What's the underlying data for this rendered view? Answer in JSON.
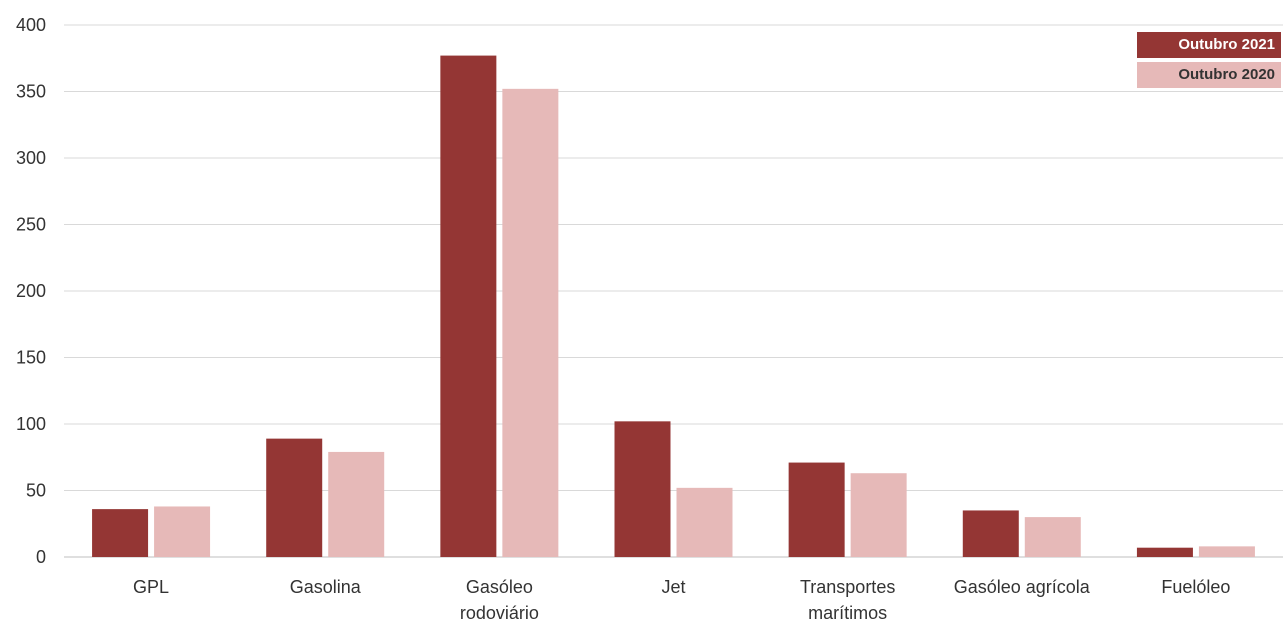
{
  "colors": {
    "series_2021": "#943634",
    "series_2020": "#E6B9B8",
    "grid": "#D9D9D9",
    "axis": "#BFBFBF"
  },
  "chart_data": {
    "type": "bar",
    "categories": [
      "GPL",
      "Gasolina",
      "Gasóleo rodoviário",
      "Jet",
      "Transportes marítimos",
      "Gasóleo agrícola",
      "Fuelóleo"
    ],
    "category_lines": [
      [
        "GPL"
      ],
      [
        "Gasolina"
      ],
      [
        "Gasóleo",
        "rodoviário"
      ],
      [
        "Jet"
      ],
      [
        "Transportes",
        "marítimos"
      ],
      [
        "Gasóleo agrícola"
      ],
      [
        "Fuelóleo"
      ]
    ],
    "series": [
      {
        "name": "Outubro 2021",
        "values": [
          36,
          89,
          377,
          102,
          71,
          35,
          7
        ]
      },
      {
        "name": "Outubro 2020",
        "values": [
          38,
          79,
          352,
          52,
          63,
          30,
          8
        ]
      }
    ],
    "ylim": [
      0,
      400
    ],
    "yticks": [
      0,
      50,
      100,
      150,
      200,
      250,
      300,
      350,
      400
    ],
    "grid": true,
    "legend_position": "top-right"
  }
}
